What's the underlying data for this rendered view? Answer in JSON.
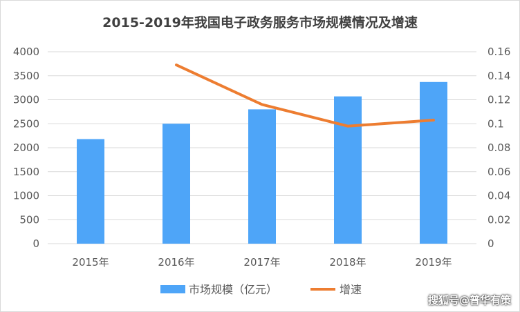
{
  "chart_data": {
    "type": "bar+line",
    "title": "2015-2019年我国电子政务服务市场规模情况及增速",
    "categories": [
      "2015年",
      "2016年",
      "2017年",
      "2018年",
      "2019年"
    ],
    "series": [
      {
        "name": "市场规模（亿元）",
        "type": "bar",
        "axis": "left",
        "color": "#4EA5F8",
        "values": [
          2180,
          2500,
          2800,
          3070,
          3370
        ]
      },
      {
        "name": "增速",
        "type": "line",
        "axis": "right",
        "color": "#ED7D31",
        "values": [
          null,
          0.149,
          0.116,
          0.098,
          0.103
        ]
      }
    ],
    "y_left": {
      "min": 0,
      "max": 4000,
      "step": 500,
      "ticks": [
        "0",
        "500",
        "1000",
        "1500",
        "2000",
        "2500",
        "3000",
        "3500",
        "4000"
      ]
    },
    "y_right": {
      "min": 0,
      "max": 0.16,
      "step": 0.02,
      "ticks": [
        "0",
        "0.02",
        "0.04",
        "0.06",
        "0.08",
        "0.1",
        "0.12",
        "0.14",
        "0.16"
      ]
    },
    "grid": true,
    "legend_position": "bottom"
  },
  "watermark": "搜狐号@普华有策"
}
